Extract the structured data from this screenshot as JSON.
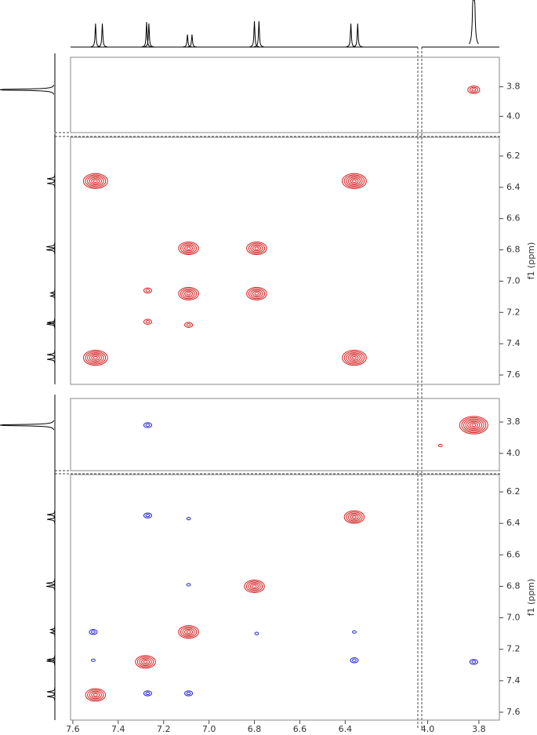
{
  "chart_data": {
    "type": "contour",
    "x_segments": [
      {
        "xlim": [
          7.61,
          6.08
        ],
        "xticks": [
          7.6,
          7.4,
          7.2,
          {
            "value": 7.0,
            "label": "7.0"
          },
          6.8,
          6.6,
          6.4
        ]
      },
      {
        "xlim": [
          4.02,
          3.72
        ],
        "xticks": [
          {
            "value": 4.0,
            "label": "4.0"
          },
          3.8
        ]
      }
    ],
    "projection": {
      "x": [
        7.5,
        7.47,
        7.275,
        7.265,
        7.095,
        7.075,
        6.8,
        6.78,
        6.375,
        6.345,
        3.82
      ],
      "height": [
        30,
        30,
        32,
        30,
        16,
        16,
        33,
        33,
        30,
        30,
        300
      ]
    },
    "panels": [
      {
        "ylim": [
          3.6,
          4.11
        ],
        "yticks": [
          3.8,
          {
            "value": 4.0,
            "label": "4.0"
          }
        ],
        "series": [
          {
            "color": "#d42020",
            "x": [
              3.82
            ],
            "y": [
              3.82
            ],
            "levels": [
              3
            ]
          }
        ]
      },
      {
        "ylabel": "f1 (ppm)",
        "ylim": [
          6.08,
          7.66
        ],
        "yticks": [
          6.2,
          6.4,
          6.6,
          6.8,
          {
            "value": 7.0,
            "label": "7.0"
          },
          7.2,
          7.4,
          7.6
        ],
        "series": [
          {
            "color": "#d42020",
            "x": [
              7.5,
              6.36,
              7.09,
              6.79,
              7.09,
              6.79,
              7.5,
              6.36,
              7.27,
              7.27,
              7.09
            ],
            "y": [
              6.36,
              6.36,
              6.79,
              6.79,
              7.08,
              7.08,
              7.49,
              7.49,
              7.06,
              7.26,
              7.28
            ],
            "levels": [
              6,
              6,
              5,
              5,
              5,
              5,
              6,
              6,
              2,
              2,
              2
            ]
          }
        ]
      },
      {
        "ylim": [
          3.65,
          4.11
        ],
        "yticks": [
          3.8,
          {
            "value": 4.0,
            "label": "4.0"
          }
        ],
        "series": [
          {
            "color": "#d42020",
            "x": [
              3.82,
              3.95
            ],
            "y": [
              3.82,
              3.95
            ],
            "levels": [
              7,
              1
            ]
          },
          {
            "color": "#2020d0",
            "x": [
              7.27
            ],
            "y": [
              3.82
            ],
            "levels": [
              2
            ]
          }
        ]
      },
      {
        "ylabel": "f1 (ppm)",
        "ylim": [
          6.09,
          7.65
        ],
        "yticks": [
          6.2,
          6.4,
          6.6,
          6.8,
          {
            "value": 7.0,
            "label": "7.0"
          },
          7.2,
          7.4,
          7.6
        ],
        "series": [
          {
            "color": "#d42020",
            "x": [
              6.36,
              6.8,
              7.09,
              7.28,
              7.5
            ],
            "y": [
              6.36,
              6.8,
              7.09,
              7.28,
              7.49
            ],
            "levels": [
              5,
              5,
              5,
              5,
              5
            ]
          },
          {
            "color": "#2020d0",
            "x": [
              7.27,
              7.09,
              7.09,
              6.79,
              7.51,
              6.36,
              7.51,
              6.36,
              3.82,
              7.27,
              7.09
            ],
            "y": [
              6.35,
              6.37,
              6.79,
              7.1,
              7.09,
              7.09,
              7.27,
              7.27,
              7.28,
              7.48,
              7.48
            ],
            "levels": [
              2,
              1,
              1,
              1,
              2,
              1,
              1,
              2,
              2,
              2,
              2
            ]
          }
        ]
      }
    ]
  }
}
